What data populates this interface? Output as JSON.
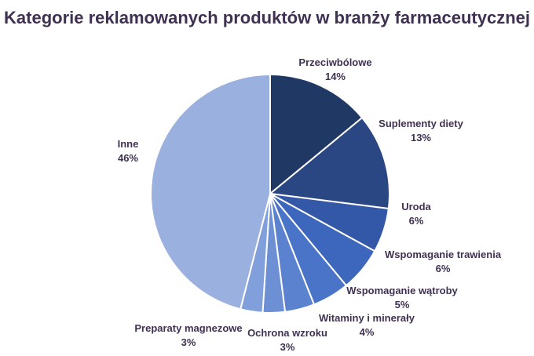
{
  "chart_data": {
    "type": "pie",
    "title": "Kategorie reklamowanych produktów w branży farmaceutycznej",
    "start_angle_deg": 0,
    "direction": "clockwise",
    "slices": [
      {
        "label": "Przeciwbólowe",
        "value": 14,
        "value_label": "14%",
        "color": "#1f3864"
      },
      {
        "label": "Suplementy diety",
        "value": 13,
        "value_label": "13%",
        "color": "#2a4784"
      },
      {
        "label": "Uroda",
        "value": 6,
        "value_label": "6%",
        "color": "#3358a8"
      },
      {
        "label": "Wspomaganie trawienia",
        "value": 6,
        "value_label": "6%",
        "color": "#3d67bd"
      },
      {
        "label": "Wspomaganie wątroby",
        "value": 5,
        "value_label": "5%",
        "color": "#4a74c8"
      },
      {
        "label": "Witaminy i minerały",
        "value": 4,
        "value_label": "4%",
        "color": "#5b82cf"
      },
      {
        "label": "Ochrona wzroku",
        "value": 3,
        "value_label": "3%",
        "color": "#6d90d5"
      },
      {
        "label": "Preparaty magnezowe",
        "value": 3,
        "value_label": "3%",
        "color": "#809fdb"
      },
      {
        "label": "Inne",
        "value": 46,
        "value_label": "46%",
        "color": "#9ab0de"
      }
    ]
  }
}
